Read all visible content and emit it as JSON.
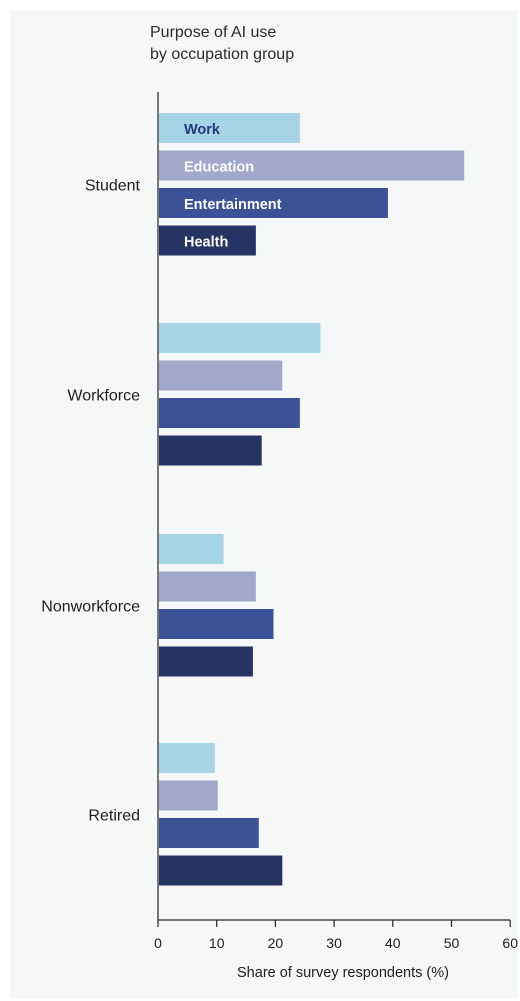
{
  "chart_data": {
    "type": "bar",
    "orientation": "horizontal",
    "title_lines": [
      "Purpose of AI use",
      "by occupation group"
    ],
    "categories": [
      "Student",
      "Workforce",
      "Nonworkforce",
      "Retired"
    ],
    "series": [
      {
        "name": "Work",
        "color": "#a6d3e6",
        "values": [
          24,
          27.5,
          11,
          9.5
        ]
      },
      {
        "name": "Education",
        "color": "#a1a8cc",
        "values": [
          52,
          21,
          16.5,
          10
        ]
      },
      {
        "name": "Entertainment",
        "color": "#3a5397",
        "values": [
          39,
          24,
          19.5,
          17
        ]
      },
      {
        "name": "Health",
        "color": "#263463",
        "values": [
          16.5,
          17.5,
          16,
          21
        ]
      }
    ],
    "legend_text_colors": [
      "#243a7a",
      "#ffffff",
      "#ffffff",
      "#ffffff"
    ],
    "xlabel": "Share of survey respondents (%)",
    "xlim": [
      0,
      60
    ],
    "xticks": [
      0,
      10,
      20,
      30,
      40,
      50,
      60
    ],
    "grid": false,
    "legend_placement": "inside first group bars"
  }
}
